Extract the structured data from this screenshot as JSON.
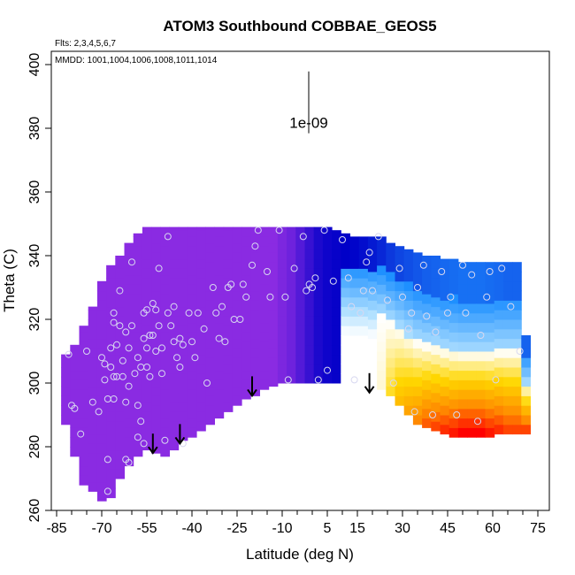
{
  "chart_data": {
    "type": "heatmap",
    "title": "ATOM3 Southbound COBBAE_GEOS5",
    "flights_note": "Flts: 2,3,4,5,6,7",
    "dates_note": "MMDD: 1001,1004,1006,1008,1011,1014",
    "xlabel": "Latitude (deg N)",
    "ylabel": "Theta (C)",
    "xlim": [
      -90,
      85
    ],
    "ylim": [
      260,
      402
    ],
    "x_ticks": [
      -85,
      -70,
      -55,
      -40,
      -25,
      -10,
      5,
      15,
      30,
      45,
      60,
      75
    ],
    "x_minor_ticks": [
      -80,
      -75,
      -65,
      -60,
      -50,
      -45,
      -35,
      -30,
      -20,
      -15,
      -5,
      0,
      10,
      20,
      25,
      35,
      40,
      50,
      55,
      65,
      70,
      80
    ],
    "y_ticks": [
      260,
      280,
      300,
      320,
      340,
      360,
      380,
      400
    ],
    "scale_bar": {
      "label": "1e-09",
      "x": -10,
      "y_top": 397,
      "y_bottom": 384
    },
    "colors": {
      "purple": "#8a2be2",
      "blue": "#0000c8",
      "light_blue": "#1e90ff",
      "red": "#ff0000",
      "orange": "#ff8c00",
      "yellow": "#ffd700",
      "marker_stroke": "#d8d8f0"
    },
    "field_columns": [
      {
        "lat": -82,
        "bottom": 287,
        "top": 309,
        "value": 0.05
      },
      {
        "lat": -79,
        "bottom": 277,
        "top": 312,
        "value": 0.05
      },
      {
        "lat": -76,
        "bottom": 268,
        "top": 318,
        "value": 0.05
      },
      {
        "lat": -73,
        "bottom": 266,
        "top": 324,
        "value": 0.05
      },
      {
        "lat": -70,
        "bottom": 263,
        "top": 332,
        "value": 0.05
      },
      {
        "lat": -67,
        "bottom": 264,
        "top": 337,
        "value": 0.05
      },
      {
        "lat": -64,
        "bottom": 270,
        "top": 340,
        "value": 0.05
      },
      {
        "lat": -61,
        "bottom": 274,
        "top": 344,
        "value": 0.05
      },
      {
        "lat": -58,
        "bottom": 277,
        "top": 347,
        "value": 0.05
      },
      {
        "lat": -55,
        "bottom": 279,
        "top": 349,
        "value": 0.05
      },
      {
        "lat": -52,
        "bottom": 278,
        "top": 349,
        "value": 0.05
      },
      {
        "lat": -49,
        "bottom": 277,
        "top": 349,
        "value": 0.06
      },
      {
        "lat": -46,
        "bottom": 279,
        "top": 349,
        "value": 0.06
      },
      {
        "lat": -43,
        "bottom": 282,
        "top": 349,
        "value": 0.06
      },
      {
        "lat": -40,
        "bottom": 283,
        "top": 349,
        "value": 0.06
      },
      {
        "lat": -37,
        "bottom": 285,
        "top": 349,
        "value": 0.06
      },
      {
        "lat": -34,
        "bottom": 287,
        "top": 349,
        "value": 0.07
      },
      {
        "lat": -31,
        "bottom": 289,
        "top": 349,
        "value": 0.07
      },
      {
        "lat": -28,
        "bottom": 291,
        "top": 349,
        "value": 0.07
      },
      {
        "lat": -25,
        "bottom": 293,
        "top": 349,
        "value": 0.08
      },
      {
        "lat": -22,
        "bottom": 295,
        "top": 349,
        "value": 0.09
      },
      {
        "lat": -19,
        "bottom": 296,
        "top": 349,
        "value": 0.1
      },
      {
        "lat": -16,
        "bottom": 298,
        "top": 349,
        "value": 0.11
      },
      {
        "lat": -13,
        "bottom": 299,
        "top": 349,
        "value": 0.12
      },
      {
        "lat": -10,
        "bottom": 300,
        "top": 349,
        "value": 0.14
      },
      {
        "lat": -7,
        "bottom": 300,
        "top": 349,
        "value": 0.16
      },
      {
        "lat": -4,
        "bottom": 300,
        "top": 349,
        "value": 0.2
      },
      {
        "lat": -1,
        "bottom": 300,
        "top": 349,
        "value": 0.24
      },
      {
        "lat": 2,
        "bottom": 300,
        "top": 349,
        "value": 0.28
      },
      {
        "lat": 5,
        "bottom": 300,
        "top": 349,
        "value": 0.3
      },
      {
        "lat": 8,
        "bottom": 300,
        "top": 348,
        "value": 0.31
      },
      {
        "lat": 11,
        "bottom": 300,
        "top": 347,
        "value": 0.32
      },
      {
        "lat": 14,
        "bottom": 300,
        "top": 346,
        "value": 0.33
      },
      {
        "lat": 17,
        "bottom": 300,
        "top": 346,
        "value": 0.35
      },
      {
        "lat": 20,
        "bottom": 299,
        "top": 346,
        "value": 0.38
      },
      {
        "lat": 23,
        "bottom": 298,
        "top": 346,
        "value": 0.41
      },
      {
        "lat": 26,
        "bottom": 296,
        "top": 344,
        "value": 0.45
      },
      {
        "lat": 29,
        "bottom": 293,
        "top": 343,
        "value": 0.48
      },
      {
        "lat": 32,
        "bottom": 290,
        "top": 342,
        "value": 0.5
      },
      {
        "lat": 35,
        "bottom": 287,
        "top": 341,
        "value": 0.52
      },
      {
        "lat": 38,
        "bottom": 286,
        "top": 340,
        "value": 0.54
      },
      {
        "lat": 41,
        "bottom": 285,
        "top": 340,
        "value": 0.55
      },
      {
        "lat": 44,
        "bottom": 284,
        "top": 339,
        "value": 0.56
      },
      {
        "lat": 47,
        "bottom": 283,
        "top": 339,
        "value": 0.57
      },
      {
        "lat": 50,
        "bottom": 283,
        "top": 338,
        "value": 0.58
      },
      {
        "lat": 53,
        "bottom": 283,
        "top": 338,
        "value": 0.58
      },
      {
        "lat": 56,
        "bottom": 283,
        "top": 338,
        "value": 0.58
      },
      {
        "lat": 59,
        "bottom": 283,
        "top": 338,
        "value": 0.57
      },
      {
        "lat": 62,
        "bottom": 284,
        "top": 338,
        "value": 0.56
      },
      {
        "lat": 65,
        "bottom": 284,
        "top": 338,
        "value": 0.55
      },
      {
        "lat": 68,
        "bottom": 284,
        "top": 338,
        "value": 0.55
      },
      {
        "lat": 71,
        "bottom": 284,
        "top": 315,
        "value": 0.55
      }
    ],
    "tropopause_arrows": [
      {
        "lat": -53,
        "theta": 278
      },
      {
        "lat": -44,
        "theta": 281
      },
      {
        "lat": -20,
        "theta": 296
      },
      {
        "lat": 19,
        "theta": 297
      }
    ],
    "sample_points": [
      [
        -81,
        309
      ],
      [
        -80,
        293
      ],
      [
        -79,
        292
      ],
      [
        -77,
        284
      ],
      [
        -75,
        310
      ],
      [
        -73,
        294
      ],
      [
        -71,
        291
      ],
      [
        -70,
        308
      ],
      [
        -69,
        306
      ],
      [
        -69,
        301
      ],
      [
        -68,
        295
      ],
      [
        -68,
        276
      ],
      [
        -68,
        266
      ],
      [
        -67,
        311
      ],
      [
        -67,
        305
      ],
      [
        -66,
        302
      ],
      [
        -66,
        295
      ],
      [
        -66,
        319
      ],
      [
        -66,
        322
      ],
      [
        -65,
        312
      ],
      [
        -65,
        302
      ],
      [
        -64,
        318
      ],
      [
        -64,
        329
      ],
      [
        -63,
        307
      ],
      [
        -63,
        302
      ],
      [
        -62,
        316
      ],
      [
        -62,
        294
      ],
      [
        -62,
        276
      ],
      [
        -61,
        311
      ],
      [
        -61,
        299
      ],
      [
        -61,
        275
      ],
      [
        -60,
        338
      ],
      [
        -60,
        318
      ],
      [
        -59,
        303
      ],
      [
        -58,
        308
      ],
      [
        -58,
        293
      ],
      [
        -58,
        283
      ],
      [
        -57,
        305
      ],
      [
        -57,
        288
      ],
      [
        -56,
        322
      ],
      [
        -56,
        314
      ],
      [
        -56,
        281
      ],
      [
        -55,
        323
      ],
      [
        -55,
        311
      ],
      [
        -55,
        305
      ],
      [
        -54,
        315
      ],
      [
        -54,
        302
      ],
      [
        -53,
        325
      ],
      [
        -53,
        315
      ],
      [
        -52,
        323
      ],
      [
        -52,
        310
      ],
      [
        -51,
        336
      ],
      [
        -51,
        318
      ],
      [
        -50,
        311
      ],
      [
        -50,
        303
      ],
      [
        -49,
        282
      ],
      [
        -48,
        346
      ],
      [
        -48,
        322
      ],
      [
        -47,
        318
      ],
      [
        -46,
        324
      ],
      [
        -46,
        313
      ],
      [
        -45,
        308
      ],
      [
        -44,
        314
      ],
      [
        -44,
        305
      ],
      [
        -43,
        312
      ],
      [
        -43,
        281
      ],
      [
        -41,
        322
      ],
      [
        -40,
        313
      ],
      [
        -39,
        308
      ],
      [
        -38,
        322
      ],
      [
        -36,
        317
      ],
      [
        -35,
        300
      ],
      [
        -33,
        330
      ],
      [
        -32,
        322
      ],
      [
        -31,
        314
      ],
      [
        -30,
        324
      ],
      [
        -29,
        313
      ],
      [
        -28,
        330
      ],
      [
        -27,
        331
      ],
      [
        -26,
        320
      ],
      [
        -24,
        320
      ],
      [
        -23,
        331
      ],
      [
        -22,
        327
      ],
      [
        -20,
        337
      ],
      [
        -19,
        343
      ],
      [
        -18,
        348
      ],
      [
        -15,
        335
      ],
      [
        -14,
        327
      ],
      [
        -11,
        348
      ],
      [
        -9,
        327
      ],
      [
        -8,
        301
      ],
      [
        -6,
        336
      ],
      [
        -3,
        346
      ],
      [
        -2,
        329
      ],
      [
        -1,
        331
      ],
      [
        0,
        330
      ],
      [
        1,
        333
      ],
      [
        2,
        301
      ],
      [
        4,
        348
      ],
      [
        5,
        304
      ],
      [
        7,
        332
      ],
      [
        10,
        345
      ],
      [
        12,
        333
      ],
      [
        13,
        324
      ],
      [
        14,
        301
      ],
      [
        16,
        322
      ],
      [
        17,
        329
      ],
      [
        18,
        338
      ],
      [
        19,
        341
      ],
      [
        20,
        329
      ],
      [
        22,
        346
      ],
      [
        25,
        326
      ],
      [
        27,
        300
      ],
      [
        29,
        336
      ],
      [
        30,
        327
      ],
      [
        32,
        317
      ],
      [
        33,
        322
      ],
      [
        34,
        291
      ],
      [
        35,
        330
      ],
      [
        37,
        337
      ],
      [
        38,
        321
      ],
      [
        40,
        290
      ],
      [
        41,
        316
      ],
      [
        43,
        335
      ],
      [
        45,
        322
      ],
      [
        46,
        327
      ],
      [
        48,
        290
      ],
      [
        50,
        337
      ],
      [
        51,
        322
      ],
      [
        53,
        334
      ],
      [
        55,
        288
      ],
      [
        56,
        315
      ],
      [
        58,
        327
      ],
      [
        59,
        335
      ],
      [
        61,
        301
      ],
      [
        63,
        336
      ],
      [
        66,
        324
      ],
      [
        69,
        310
      ]
    ]
  }
}
